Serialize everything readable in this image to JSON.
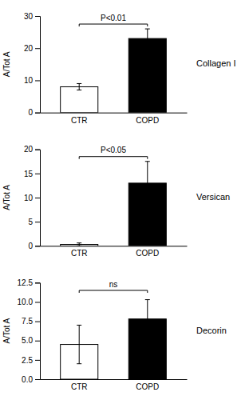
{
  "chart_data": [
    {
      "type": "bar",
      "title": "Collagen I",
      "ylabel": "A/Tot A",
      "categories": [
        "CTR",
        "COPD"
      ],
      "values": [
        8.0,
        23.0
      ],
      "errors": [
        1.0,
        3.0
      ],
      "colors": [
        "white",
        "black"
      ],
      "ylim": [
        0,
        30
      ],
      "yticks": [
        0,
        10,
        20,
        30
      ],
      "annotations": [
        {
          "text": "P<0.01",
          "y": 27.5,
          "text_y": 28.0
        }
      ]
    },
    {
      "type": "bar",
      "title": "Versican",
      "ylabel": "A/Tot A",
      "categories": [
        "CTR",
        "COPD"
      ],
      "values": [
        0.3,
        13.0
      ],
      "errors": [
        0.3,
        4.5
      ],
      "colors": [
        "white",
        "black"
      ],
      "ylim": [
        0,
        20
      ],
      "yticks": [
        0,
        5,
        10,
        15,
        20
      ],
      "annotations": [
        {
          "text": "P<0.05",
          "y": 18.5,
          "text_y": 19.0
        }
      ]
    },
    {
      "type": "bar",
      "title": "Decorin",
      "ylabel": "A/Tot A",
      "categories": [
        "CTR",
        "COPD"
      ],
      "values": [
        4.5,
        7.8
      ],
      "errors": [
        2.5,
        2.5
      ],
      "colors": [
        "white",
        "black"
      ],
      "ylim": [
        0,
        12.5
      ],
      "yticks": [
        {
          "value": 0,
          "label": "0.0"
        },
        2.5,
        {
          "value": 5,
          "label": "5.0"
        },
        7.5,
        {
          "value": 10,
          "label": "10.0"
        },
        12.5
      ],
      "annotations": [
        {
          "text": "ns",
          "y": 11.5,
          "text_y": 11.7
        }
      ]
    }
  ]
}
